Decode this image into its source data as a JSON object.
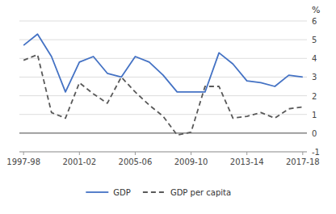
{
  "chart_data": {
    "type": "line",
    "categories": [
      "1997-98",
      null,
      null,
      null,
      "2001-02",
      null,
      null,
      null,
      "2005-06",
      null,
      null,
      null,
      "2009-10",
      null,
      null,
      null,
      "2013-14",
      null,
      null,
      null,
      "2017-18"
    ],
    "series": [
      {
        "name": "GDP",
        "color": "#4472C4",
        "line_style": "solid",
        "values": [
          4.7,
          5.3,
          4.1,
          2.2,
          3.8,
          4.1,
          3.2,
          3.0,
          4.1,
          3.8,
          3.1,
          2.2,
          2.2,
          2.2,
          4.3,
          3.7,
          2.8,
          2.7,
          2.5,
          3.1,
          3.0
        ]
      },
      {
        "name": "GDP per capita",
        "color": "#595959",
        "line_style": "dashed",
        "values": [
          3.9,
          4.2,
          1.1,
          0.8,
          2.7,
          2.1,
          1.6,
          3.0,
          2.2,
          1.5,
          0.9,
          -0.1,
          0.05,
          2.5,
          2.5,
          0.8,
          0.9,
          1.1,
          0.8,
          1.3,
          1.4
        ]
      }
    ],
    "y_label": "%",
    "ylim": [
      -1,
      6
    ],
    "yticks": [
      -1,
      0,
      1,
      2,
      3,
      4,
      5,
      6
    ],
    "grid": true,
    "legend": "bottom"
  }
}
